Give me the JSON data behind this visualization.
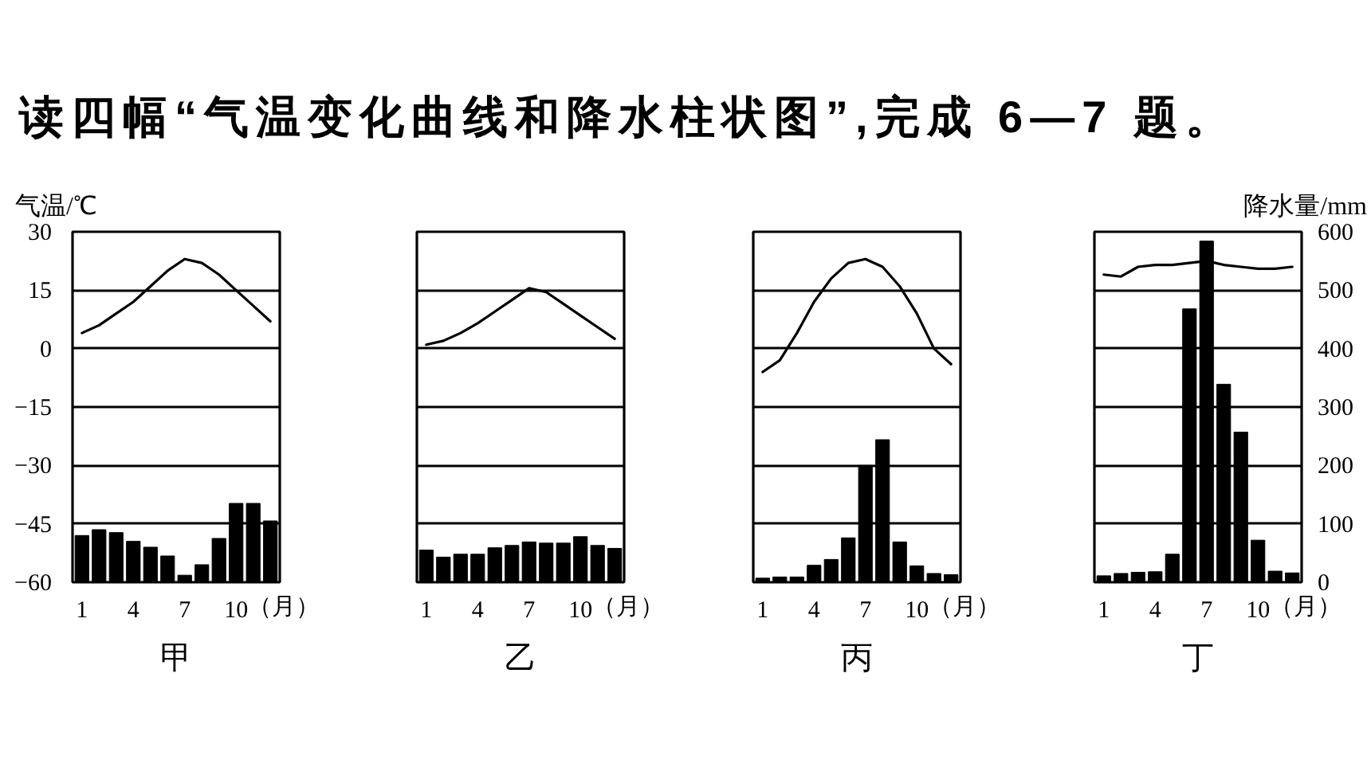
{
  "chart_data": [
    {
      "type": "bar",
      "title": "甲",
      "ylabel": "气温/℃",
      "xlabel": "（月）",
      "annotations": [
        "读四幅“气温变化曲线和降水柱状图”,完成 6—7 题。"
      ],
      "x": [
        1,
        2,
        3,
        4,
        5,
        6,
        7,
        8,
        9,
        10,
        11,
        12
      ],
      "xlim": [
        0.45,
        12.55
      ],
      "xticks": [
        1,
        4,
        7,
        10
      ],
      "ylim": [
        -60,
        30
      ],
      "yticks": [
        -60,
        -45,
        -30,
        -15,
        0,
        15,
        30
      ],
      "y2lim": [
        0,
        600
      ],
      "grid": "y",
      "series": [
        {
          "type": "line",
          "color": "#000000",
          "values": [
            4,
            6,
            9,
            12,
            16,
            20,
            23,
            22,
            19,
            15,
            11,
            7
          ]
        },
        {
          "axis": "y2",
          "color": "#000000",
          "values": [
            80,
            90,
            85,
            70,
            60,
            45,
            12,
            30,
            75,
            135,
            135,
            105
          ]
        }
      ]
    },
    {
      "type": "bar",
      "title": "乙",
      "xlabel": "（月）",
      "x": [
        1,
        2,
        3,
        4,
        5,
        6,
        7,
        8,
        9,
        10,
        11,
        12
      ],
      "xlim": [
        0.45,
        12.55
      ],
      "xticks": [
        1,
        4,
        7,
        10
      ],
      "ylim": [
        -60,
        30
      ],
      "yticks": [
        -60,
        -45,
        -30,
        -15,
        0,
        15,
        30
      ],
      "y2lim": [
        0,
        600
      ],
      "grid": "y",
      "tick_labels": "x",
      "series": [
        {
          "type": "line",
          "color": "#000000",
          "values": [
            1,
            2,
            4,
            6.5,
            9.5,
            12.5,
            15.5,
            14.5,
            11.5,
            8.5,
            5.5,
            2.5
          ]
        },
        {
          "axis": "y2",
          "color": "#000000",
          "values": [
            55,
            43,
            48,
            48,
            59,
            63,
            69,
            67,
            67,
            78,
            63,
            58
          ]
        }
      ]
    },
    {
      "type": "bar",
      "title": "丙",
      "xlabel": "（月）",
      "x": [
        1,
        2,
        3,
        4,
        5,
        6,
        7,
        8,
        9,
        10,
        11,
        12
      ],
      "xlim": [
        0.45,
        12.55
      ],
      "xticks": [
        1,
        4,
        7,
        10
      ],
      "ylim": [
        -60,
        30
      ],
      "yticks": [
        -60,
        -45,
        -30,
        -15,
        0,
        15,
        30
      ],
      "y2lim": [
        0,
        600
      ],
      "grid": "y",
      "tick_labels": "x",
      "series": [
        {
          "type": "line",
          "color": "#000000",
          "values": [
            -6,
            -3,
            4,
            12,
            18,
            22,
            23,
            21,
            16,
            9,
            0,
            -4
          ]
        },
        {
          "axis": "y2",
          "color": "#000000",
          "values": [
            7,
            9,
            9,
            29,
            39,
            76,
            200,
            244,
            69,
            28,
            15,
            13
          ]
        }
      ]
    },
    {
      "type": "bar",
      "title": "丁",
      "xlabel": "（月）",
      "y2label": "降水量/mm",
      "x": [
        1,
        2,
        3,
        4,
        5,
        6,
        7,
        8,
        9,
        10,
        11,
        12
      ],
      "xlim": [
        0.45,
        12.55
      ],
      "xticks": [
        1,
        4,
        7,
        10
      ],
      "ylim": [
        -60,
        30
      ],
      "y2lim": [
        0,
        600
      ],
      "y2ticks": [
        0,
        100,
        200,
        300,
        400,
        500,
        600
      ],
      "grid": "y",
      "series": [
        {
          "type": "line",
          "color": "#000000",
          "values": [
            19,
            18.5,
            21,
            21.5,
            21.5,
            22,
            22.5,
            21.5,
            21,
            20.5,
            20.5,
            21
          ]
        },
        {
          "axis": "y2",
          "color": "#000000",
          "values": [
            11,
            15,
            17,
            18,
            48,
            468,
            584,
            339,
            257,
            72,
            19,
            16
          ]
        }
      ]
    }
  ]
}
